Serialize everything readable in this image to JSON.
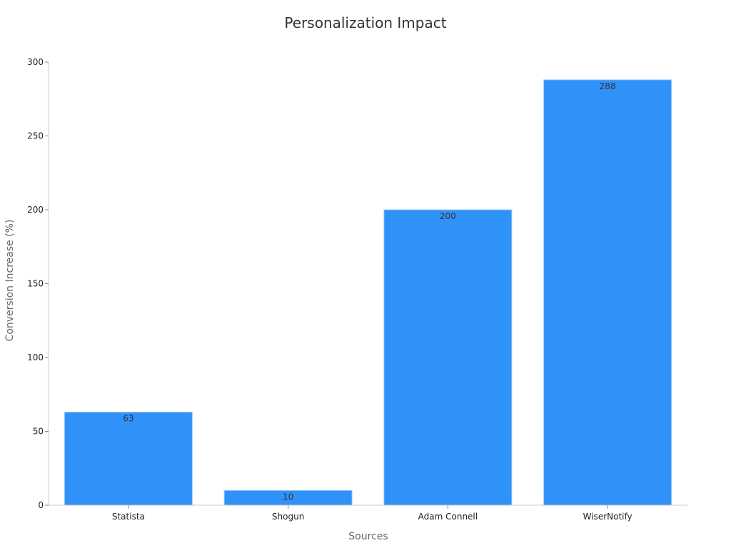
{
  "chart_data": {
    "type": "bar",
    "title": "Personalization Impact",
    "xlabel": "Sources",
    "ylabel": "Conversion Increase (%)",
    "categories": [
      "Statista",
      "Shogun",
      "Adam Connell",
      "WiserNotify"
    ],
    "values": [
      63,
      10,
      200,
      288
    ],
    "ylim": [
      0,
      300
    ],
    "yticks": [
      0,
      50,
      100,
      150,
      200,
      250,
      300
    ],
    "grid": false,
    "legend": "none",
    "bar_color": "#2f92f8",
    "bar_edge_color": "#9fcbf7"
  }
}
